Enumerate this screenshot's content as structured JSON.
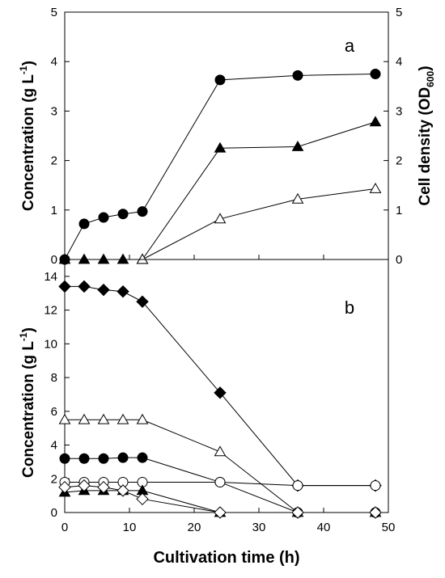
{
  "figure": {
    "xlabel": "Cultivation time (h)",
    "x_ticks": [
      "0",
      "10",
      "20",
      "30",
      "40",
      "50"
    ],
    "xlim": [
      0,
      50
    ]
  },
  "chart_data": [
    {
      "type": "line",
      "panel_label": "a",
      "ylabel_left_main": "Concentration (g L",
      "ylabel_left_sup": "-1",
      "ylabel_left_end": ")",
      "ylabel_right_main": "Cell density (OD",
      "ylabel_right_sub": "600",
      "ylabel_right_end": ")",
      "ylim": [
        0,
        5
      ],
      "y_ticks": [
        "0",
        "1",
        "2",
        "3",
        "4",
        "5"
      ],
      "y2lim": [
        0,
        5
      ],
      "y2_ticks": [
        "0",
        "1",
        "2",
        "3",
        "4",
        "5"
      ],
      "series": [
        {
          "marker": "circle",
          "fill": "#000000",
          "x": [
            0,
            3,
            6,
            9,
            12,
            24,
            36,
            48
          ],
          "y": [
            0,
            0.72,
            0.85,
            0.92,
            0.97,
            3.63,
            3.72,
            3.75
          ]
        },
        {
          "marker": "triangle",
          "fill": "#000000",
          "x": [
            0,
            3,
            6,
            9,
            12,
            24,
            36,
            48
          ],
          "y": [
            0,
            0,
            0,
            0,
            0,
            2.25,
            2.28,
            2.78
          ]
        },
        {
          "marker": "triangle",
          "fill": "#ffffff",
          "x": [
            12,
            24,
            36,
            48
          ],
          "y": [
            0,
            0.82,
            1.22,
            1.43
          ]
        }
      ]
    },
    {
      "type": "line",
      "panel_label": "b",
      "ylabel_left_main": "Concentration (g L",
      "ylabel_left_sup": "-1",
      "ylabel_left_end": ")",
      "ylim": [
        0,
        15
      ],
      "y_ticks": [
        "0",
        "2",
        "4",
        "6",
        "8",
        "10",
        "12",
        "14"
      ],
      "y_tick_values": [
        0,
        2,
        4,
        6,
        8,
        10,
        12,
        14
      ],
      "series": [
        {
          "marker": "diamond",
          "fill": "#000000",
          "x": [
            0,
            3,
            6,
            9,
            12,
            24,
            36,
            48
          ],
          "y": [
            13.4,
            13.4,
            13.2,
            13.1,
            12.5,
            7.1,
            1.6,
            1.6
          ]
        },
        {
          "marker": "triangle",
          "fill": "#ffffff",
          "x": [
            0,
            3,
            6,
            9,
            12,
            24,
            36,
            48
          ],
          "y": [
            5.5,
            5.5,
            5.5,
            5.5,
            5.5,
            3.6,
            0,
            0
          ]
        },
        {
          "marker": "circle",
          "fill": "#000000",
          "x": [
            0,
            3,
            6,
            9,
            12,
            24,
            36,
            48
          ],
          "y": [
            3.2,
            3.2,
            3.2,
            3.25,
            3.25,
            1.8,
            0,
            0
          ]
        },
        {
          "marker": "circle",
          "fill": "#ffffff",
          "x": [
            0,
            3,
            6,
            9,
            12,
            24,
            36,
            48
          ],
          "y": [
            1.8,
            1.8,
            1.8,
            1.8,
            1.8,
            1.8,
            1.6,
            1.6
          ]
        },
        {
          "marker": "triangle",
          "fill": "#000000",
          "x": [
            0,
            3,
            6,
            9,
            12,
            24
          ],
          "y": [
            1.2,
            1.3,
            1.3,
            1.3,
            1.3,
            0
          ]
        },
        {
          "marker": "diamond",
          "fill": "#ffffff",
          "x": [
            0,
            3,
            6,
            9,
            12,
            24,
            36,
            48
          ],
          "y": [
            1.5,
            1.6,
            1.5,
            1.3,
            0.8,
            0,
            0,
            0
          ]
        }
      ]
    }
  ]
}
